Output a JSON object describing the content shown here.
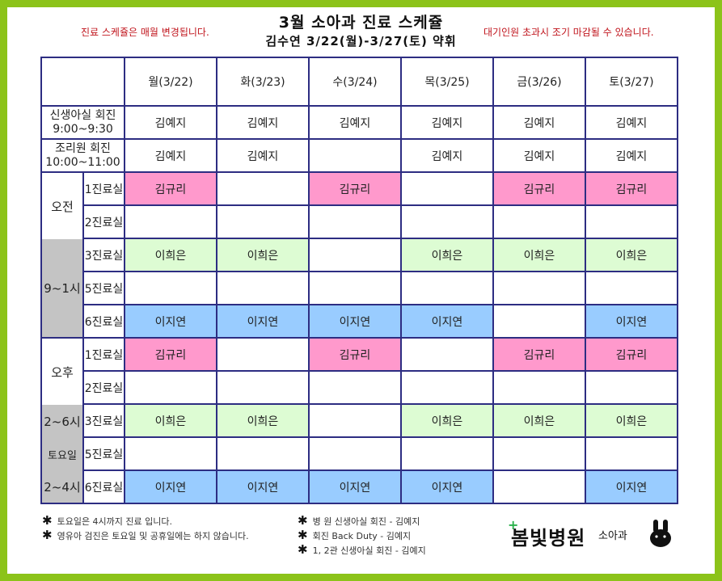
{
  "notice_left": "진료 스케쥴은 매월 변경됩니다.",
  "notice_right": "대기인원 초과시 조기 마감될 수 있습니다.",
  "title": "3월 소아과 진료 스케쥴",
  "subtitle": "김수연 3/22(월)-3/27(토) 약휘",
  "days": [
    "월(3/22)",
    "화(3/23)",
    "수(3/24)",
    "목(3/25)",
    "금(3/26)",
    "토(3/27)"
  ],
  "nicu": {
    "label1": "신생아실 회진",
    "label2": "9:00~9:30",
    "cells": [
      "김예지",
      "김예지",
      "김예지",
      "김예지",
      "김예지",
      "김예지"
    ]
  },
  "postpartum": {
    "label1": "조리원 회진",
    "label2": "10:00~11:00",
    "cells": [
      "김예지",
      "김예지",
      "",
      "김예지",
      "김예지",
      "김예지"
    ]
  },
  "am": {
    "label": "오전",
    "hours": "9~1시",
    "rows": [
      {
        "room": "1진료실",
        "cells": [
          "김규리",
          "",
          "김규리",
          "",
          "김규리",
          "김규리"
        ]
      },
      {
        "room": "2진료실",
        "cells": [
          "",
          "",
          "",
          "",
          "",
          ""
        ]
      },
      {
        "room": "3진료실",
        "cells": [
          "이희은",
          "이희은",
          "",
          "이희은",
          "이희은",
          "이희은"
        ]
      },
      {
        "room": "5진료실",
        "cells": [
          "",
          "",
          "",
          "",
          "",
          ""
        ]
      },
      {
        "room": "6진료실",
        "cells": [
          "이지연",
          "이지연",
          "이지연",
          "이지연",
          "",
          "이지연"
        ]
      }
    ]
  },
  "pm": {
    "label": "오후",
    "hours": "2~6시",
    "saturday": "토요일",
    "sat_hours": "2~4시",
    "rows": [
      {
        "room": "1진료실",
        "cells": [
          "김규리",
          "",
          "김규리",
          "",
          "김규리",
          "김규리"
        ]
      },
      {
        "room": "2진료실",
        "cells": [
          "",
          "",
          "",
          "",
          "",
          ""
        ]
      },
      {
        "room": "3진료실",
        "cells": [
          "이희은",
          "이희은",
          "",
          "이희은",
          "이희은",
          "이희은"
        ]
      },
      {
        "room": "5진료실",
        "cells": [
          "",
          "",
          "",
          "",
          "",
          ""
        ]
      },
      {
        "room": "6진료실",
        "cells": [
          "이지연",
          "이지연",
          "이지연",
          "이지연",
          "",
          "이지연"
        ]
      }
    ]
  },
  "footnotes_left": [
    "토요일은 4시까지 진료 입니다.",
    "영유아 검진은 토요일 및 공휴일에는 하지 않습니다."
  ],
  "footnotes_right": [
    "병 원 신생아실 회진 - 김예지",
    "회진 Back Duty - 김예지",
    "1, 2관 신생아실 회진 - 김예지"
  ],
  "logo": "봄빛병원",
  "department": "소아과",
  "colors": {
    "frame": "#8cc31a",
    "pink": "#ff99cc",
    "green": "#ddfcd3",
    "blue": "#99ccff",
    "gray": "#c4c4c4",
    "grid": "#2d2d82",
    "notice": "#c0141c"
  }
}
